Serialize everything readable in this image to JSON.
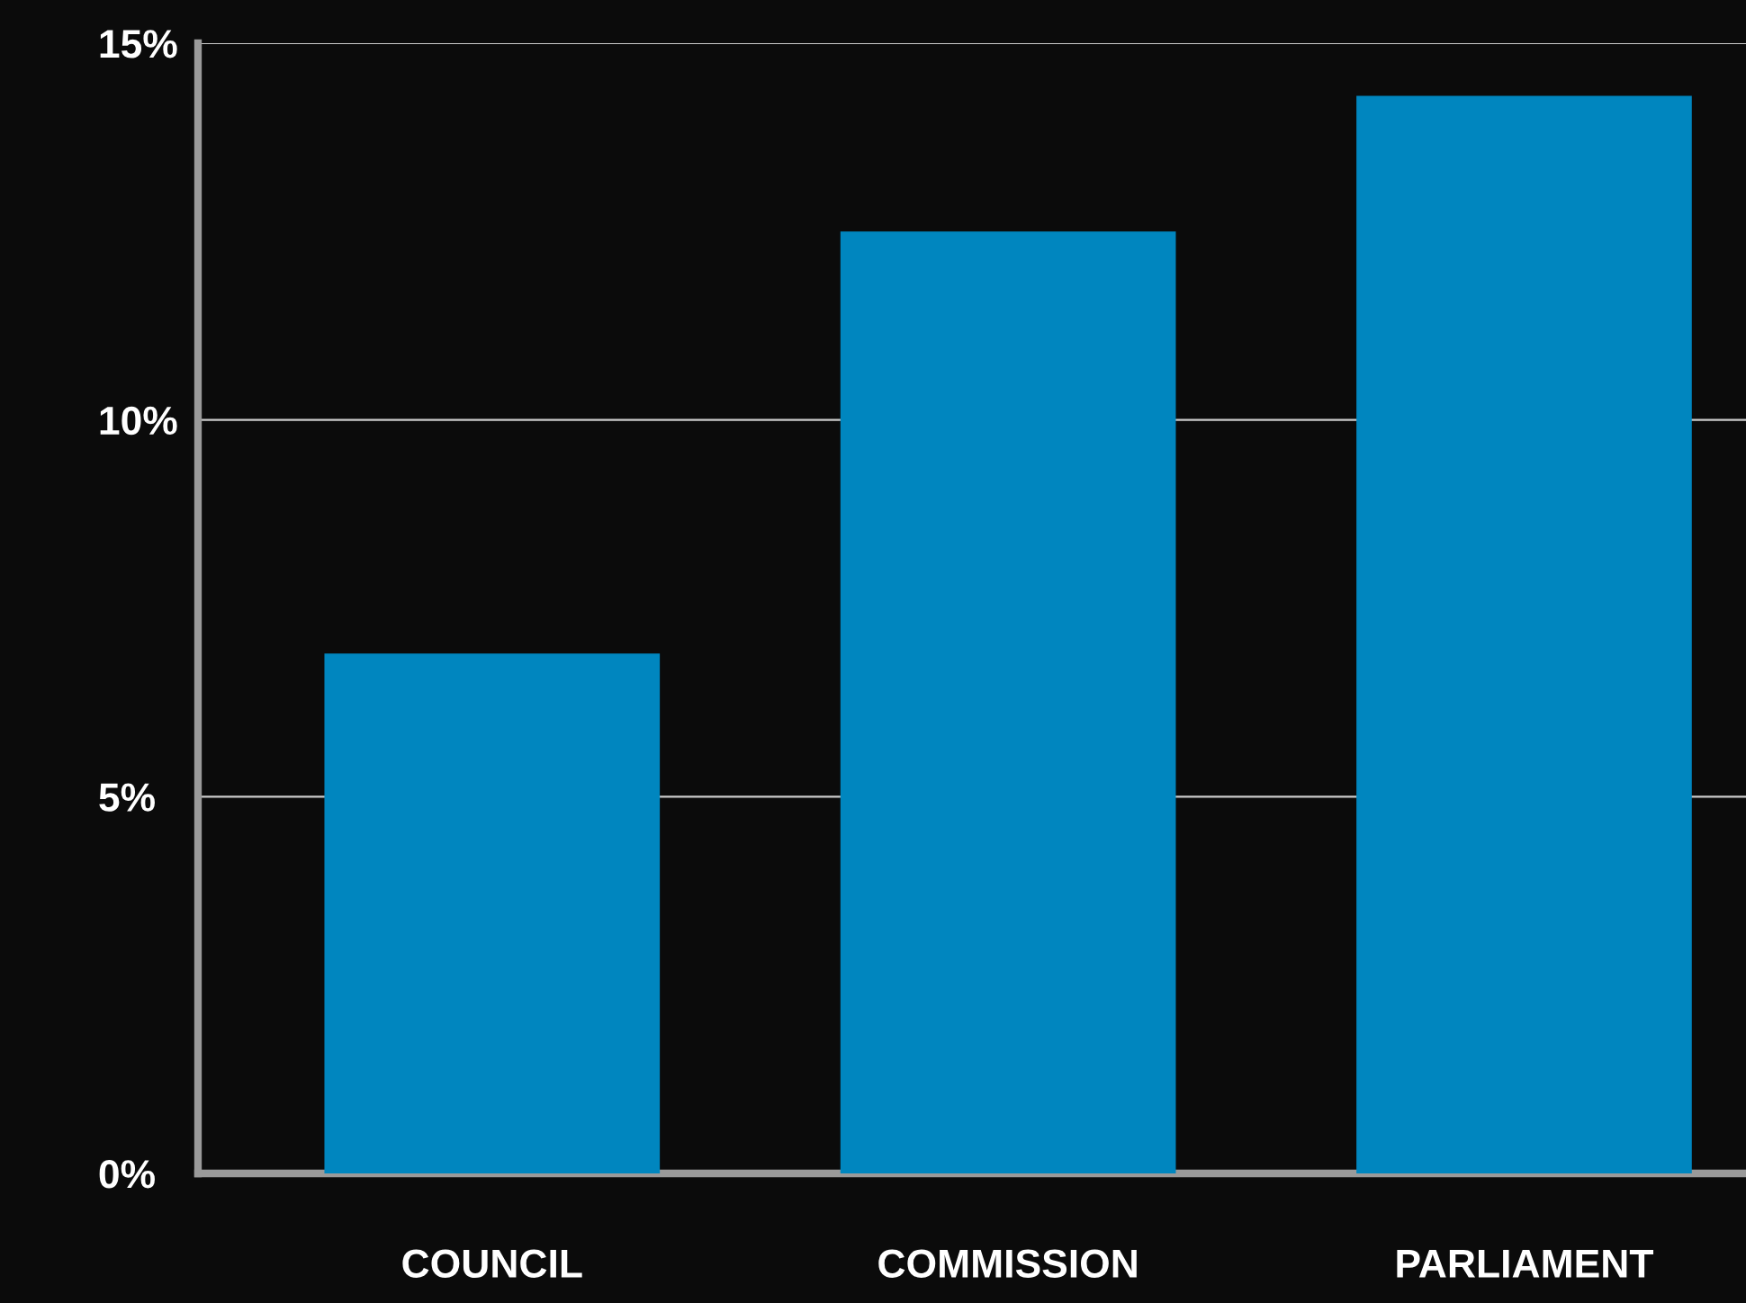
{
  "chart_data": {
    "type": "bar",
    "categories": [
      "COUNCIL",
      "COMMISSION",
      "PARLIAMENT"
    ],
    "values": [
      6.9,
      12.5,
      14.3
    ],
    "color": "#0086bf",
    "ylim": [
      0,
      15
    ],
    "yticks": [
      {
        "value": 0,
        "label": "0%"
      },
      {
        "value": 5,
        "label": "5%"
      },
      {
        "value": 10,
        "label": "10%"
      },
      {
        "value": 15,
        "label": "15%"
      }
    ],
    "grid": "y"
  }
}
